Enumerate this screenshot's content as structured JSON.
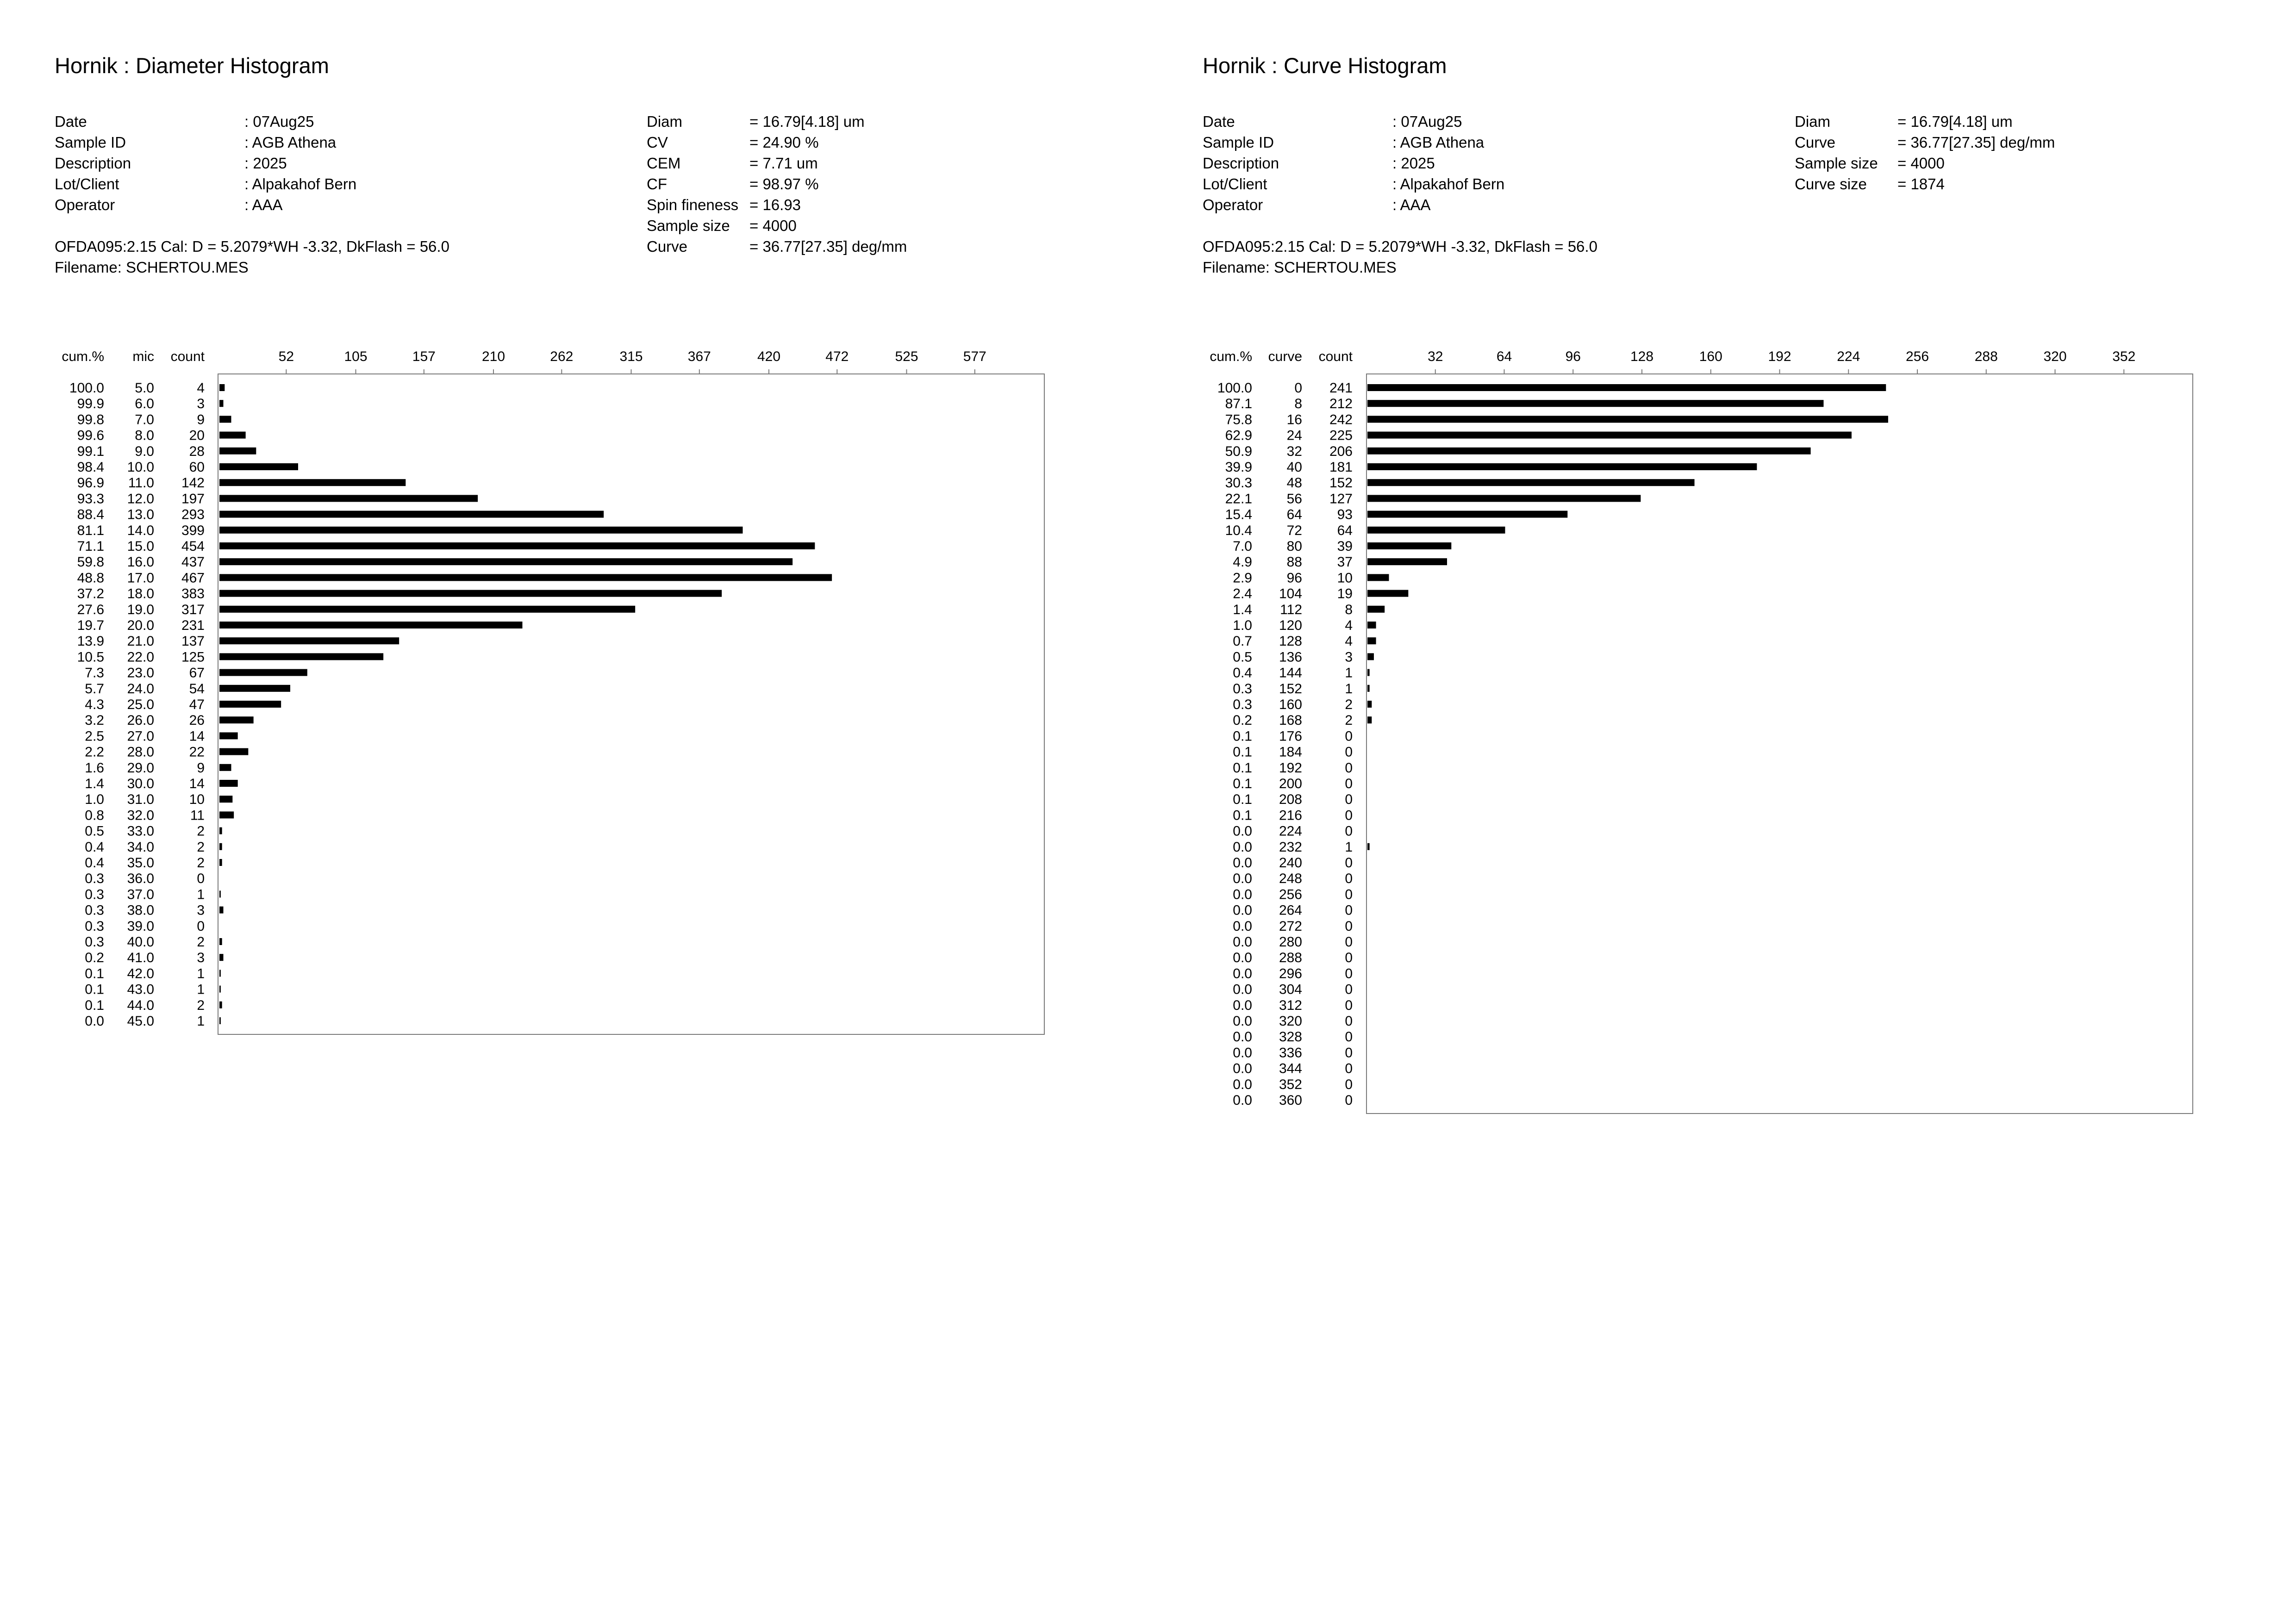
{
  "charts": [
    {
      "title": "Hornik : Diameter Histogram",
      "meta": [
        {
          "label": "Date",
          "value": ": 07Aug25"
        },
        {
          "label": "Sample ID",
          "value": ": AGB Athena"
        },
        {
          "label": "Description",
          "value": ": 2025"
        },
        {
          "label": "Lot/Client",
          "value": ": Alpakahof Bern"
        },
        {
          "label": "Operator",
          "value": ": AAA"
        }
      ],
      "stats": [
        {
          "label": "Diam",
          "value": "=  16.79[4.18] um"
        },
        {
          "label": "CV",
          "value": "=  24.90 %"
        },
        {
          "label": "CEM",
          "value": "=  7.71 um"
        },
        {
          "label": "CF",
          "value": "=  98.97 %"
        },
        {
          "label": "Spin fineness",
          "value": "=  16.93"
        },
        {
          "label": "Sample size",
          "value": "=  4000"
        },
        {
          "label": "Curve",
          "value": "=  36.77[27.35] deg/mm"
        }
      ],
      "calibration": "OFDA095:2.15 Cal: D = 5.2079*WH -3.32, DkFlash =  56.0",
      "filename": "Filename: SCHERTOU.MES"
    },
    {
      "title": "Hornik : Curve Histogram",
      "meta": [
        {
          "label": "Date",
          "value": ": 07Aug25"
        },
        {
          "label": "Sample ID",
          "value": ": AGB Athena"
        },
        {
          "label": "Description",
          "value": ": 2025"
        },
        {
          "label": "Lot/Client",
          "value": ": Alpakahof Bern"
        },
        {
          "label": "Operator",
          "value": ": AAA"
        }
      ],
      "stats": [
        {
          "label": "Diam",
          "value": "=  16.79[4.18] um"
        },
        {
          "label": "Curve",
          "value": "=  36.77[27.35] deg/mm"
        },
        {
          "label": "Sample size",
          "value": "=  4000"
        },
        {
          "label": "Curve size",
          "value": "=  1874"
        }
      ],
      "calibration": "OFDA095:2.15 Cal: D = 5.2079*WH -3.32, DkFlash =  56.0",
      "filename": "Filename: SCHERTOU.MES"
    }
  ],
  "chart_data": [
    {
      "type": "bar",
      "orientation": "horizontal",
      "title": "Hornik : Diameter Histogram",
      "column_headers": [
        "cum.%",
        "mic",
        "count"
      ],
      "ticks": [
        52,
        105,
        157,
        210,
        262,
        315,
        367,
        420,
        472,
        525,
        577
      ],
      "xlim": [
        0,
        630
      ],
      "cum_pct": [
        "100.0",
        "99.9",
        "99.8",
        "99.6",
        "99.1",
        "98.4",
        "96.9",
        "93.3",
        "88.4",
        "81.1",
        "71.1",
        "59.8",
        "48.8",
        "37.2",
        "27.6",
        "19.7",
        "13.9",
        "10.5",
        "7.3",
        "5.7",
        "4.3",
        "3.2",
        "2.5",
        "2.2",
        "1.6",
        "1.4",
        "1.0",
        "0.8",
        "0.5",
        "0.4",
        "0.4",
        "0.3",
        "0.3",
        "0.3",
        "0.3",
        "0.3",
        "0.2",
        "0.1",
        "0.1",
        "0.1",
        "0.0"
      ],
      "categories": [
        "5.0",
        "6.0",
        "7.0",
        "8.0",
        "9.0",
        "10.0",
        "11.0",
        "12.0",
        "13.0",
        "14.0",
        "15.0",
        "16.0",
        "17.0",
        "18.0",
        "19.0",
        "20.0",
        "21.0",
        "22.0",
        "23.0",
        "24.0",
        "25.0",
        "26.0",
        "27.0",
        "28.0",
        "29.0",
        "30.0",
        "31.0",
        "32.0",
        "33.0",
        "34.0",
        "35.0",
        "36.0",
        "37.0",
        "38.0",
        "39.0",
        "40.0",
        "41.0",
        "42.0",
        "43.0",
        "44.0",
        "45.0"
      ],
      "values": [
        4,
        3,
        9,
        20,
        28,
        60,
        142,
        197,
        293,
        399,
        454,
        437,
        467,
        383,
        317,
        231,
        137,
        125,
        67,
        54,
        47,
        26,
        14,
        22,
        9,
        14,
        10,
        11,
        2,
        2,
        2,
        0,
        1,
        3,
        0,
        2,
        3,
        1,
        1,
        2,
        1
      ]
    },
    {
      "type": "bar",
      "orientation": "horizontal",
      "title": "Hornik : Curve Histogram",
      "column_headers": [
        "cum.%",
        "curve",
        "count"
      ],
      "ticks": [
        32,
        64,
        96,
        128,
        160,
        192,
        224,
        256,
        288,
        320,
        352
      ],
      "xlim": [
        0,
        384
      ],
      "cum_pct": [
        "100.0",
        "87.1",
        "75.8",
        "62.9",
        "50.9",
        "39.9",
        "30.3",
        "22.1",
        "15.4",
        "10.4",
        "7.0",
        "4.9",
        "2.9",
        "2.4",
        "1.4",
        "1.0",
        "0.7",
        "0.5",
        "0.4",
        "0.3",
        "0.3",
        "0.2",
        "0.1",
        "0.1",
        "0.1",
        "0.1",
        "0.1",
        "0.1",
        "0.0",
        "0.0",
        "0.0",
        "0.0",
        "0.0",
        "0.0",
        "0.0",
        "0.0",
        "0.0",
        "0.0",
        "0.0",
        "0.0",
        "0.0",
        "0.0",
        "0.0",
        "0.0",
        "0.0",
        "0.0"
      ],
      "categories": [
        "0",
        "8",
        "16",
        "24",
        "32",
        "40",
        "48",
        "56",
        "64",
        "72",
        "80",
        "88",
        "96",
        "104",
        "112",
        "120",
        "128",
        "136",
        "144",
        "152",
        "160",
        "168",
        "176",
        "184",
        "192",
        "200",
        "208",
        "216",
        "224",
        "232",
        "240",
        "248",
        "256",
        "264",
        "272",
        "280",
        "288",
        "296",
        "304",
        "312",
        "320",
        "328",
        "336",
        "344",
        "352",
        "360"
      ],
      "values": [
        241,
        212,
        242,
        225,
        206,
        181,
        152,
        127,
        93,
        64,
        39,
        37,
        10,
        19,
        8,
        4,
        4,
        3,
        1,
        1,
        2,
        2,
        0,
        0,
        0,
        0,
        0,
        0,
        0,
        1,
        0,
        0,
        0,
        0,
        0,
        0,
        0,
        0,
        0,
        0,
        0,
        0,
        0,
        0,
        0,
        0
      ]
    }
  ]
}
